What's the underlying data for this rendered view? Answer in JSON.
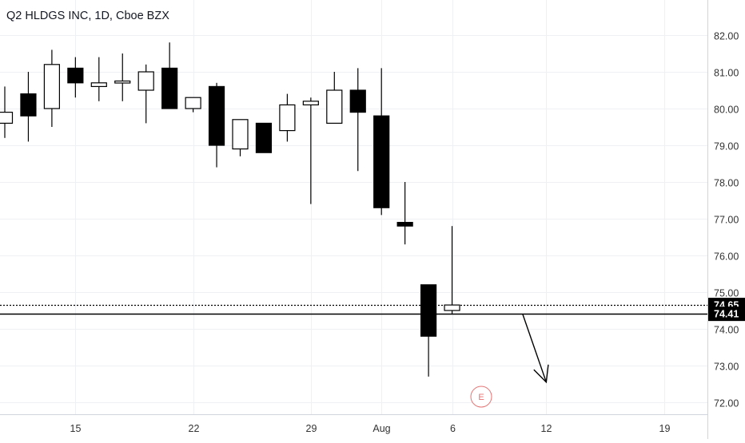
{
  "header": {
    "title": "Q2 HLDGS INC, 1D, Cboe BZX"
  },
  "colors": {
    "background": "#ffffff",
    "grid": "#eef0f3",
    "candle": "#000000",
    "axis_text": "#333333",
    "price_label_bg": "#000000",
    "price_label_text": "#ffffff",
    "earnings_marker": "#e57373"
  },
  "chart_data": {
    "type": "candlestick",
    "title": "Q2 HLDGS INC, 1D, Cboe BZX",
    "ylim": [
      71.85,
      82.7
    ],
    "y_ticks": [
      72,
      73,
      74,
      75,
      76,
      77,
      78,
      79,
      80,
      81,
      82
    ],
    "y_tick_labels": [
      "72.00",
      "73.00",
      "74.00",
      "75.00",
      "76.00",
      "77.00",
      "78.00",
      "79.00",
      "80.00",
      "81.00",
      "82.00"
    ],
    "x_ticks": [
      {
        "label": "15",
        "date": "2019-07-15"
      },
      {
        "label": "22",
        "date": "2019-07-22"
      },
      {
        "label": "29",
        "date": "2019-07-29"
      },
      {
        "label": "Aug",
        "date": "2019-08-01"
      },
      {
        "label": "6",
        "date": "2019-08-06"
      },
      {
        "label": "12",
        "date": "2019-08-12"
      },
      {
        "label": "19",
        "date": "2019-08-19"
      }
    ],
    "candles": [
      {
        "date": "2019-07-10",
        "open": 79.6,
        "high": 80.6,
        "low": 79.2,
        "close": 79.9
      },
      {
        "date": "2019-07-11",
        "open": 80.4,
        "high": 81.0,
        "low": 79.1,
        "close": 79.8
      },
      {
        "date": "2019-07-12",
        "open": 80.0,
        "high": 81.6,
        "low": 79.5,
        "close": 81.2
      },
      {
        "date": "2019-07-15",
        "open": 81.1,
        "high": 81.4,
        "low": 80.3,
        "close": 80.7
      },
      {
        "date": "2019-07-16",
        "open": 80.6,
        "high": 81.4,
        "low": 80.2,
        "close": 80.7
      },
      {
        "date": "2019-07-17",
        "open": 80.75,
        "high": 81.5,
        "low": 80.2,
        "close": 80.75
      },
      {
        "date": "2019-07-18",
        "open": 80.5,
        "high": 81.2,
        "low": 79.6,
        "close": 81.0
      },
      {
        "date": "2019-07-19",
        "open": 81.1,
        "high": 81.8,
        "low": 80.0,
        "close": 80.0
      },
      {
        "date": "2019-07-22",
        "open": 80.0,
        "high": 80.3,
        "low": 79.9,
        "close": 80.3
      },
      {
        "date": "2019-07-23",
        "open": 80.6,
        "high": 80.7,
        "low": 78.4,
        "close": 79.0
      },
      {
        "date": "2019-07-24",
        "open": 78.9,
        "high": 79.7,
        "low": 78.7,
        "close": 79.7
      },
      {
        "date": "2019-07-25",
        "open": 79.6,
        "high": 79.6,
        "low": 78.8,
        "close": 78.8
      },
      {
        "date": "2019-07-26",
        "open": 79.4,
        "high": 80.4,
        "low": 79.1,
        "close": 80.1
      },
      {
        "date": "2019-07-29",
        "open": 80.1,
        "high": 80.3,
        "low": 77.4,
        "close": 80.2
      },
      {
        "date": "2019-07-30",
        "open": 79.6,
        "high": 81.0,
        "low": 79.6,
        "close": 80.5
      },
      {
        "date": "2019-07-31",
        "open": 80.5,
        "high": 81.1,
        "low": 78.3,
        "close": 79.9
      },
      {
        "date": "2019-08-01",
        "open": 79.8,
        "high": 81.1,
        "low": 77.1,
        "close": 77.3
      },
      {
        "date": "2019-08-02",
        "open": 76.9,
        "high": 78.0,
        "low": 76.3,
        "close": 76.8
      },
      {
        "date": "2019-08-05",
        "open": 75.2,
        "high": 75.2,
        "low": 72.7,
        "close": 73.8
      },
      {
        "date": "2019-08-06",
        "open": 74.5,
        "high": 76.8,
        "low": 74.4,
        "close": 74.65
      }
    ],
    "horizontal_lines": [
      {
        "price": 74.65,
        "style": "dotted",
        "label": "74.65"
      },
      {
        "price": 74.41,
        "style": "solid",
        "label": "74.41"
      }
    ],
    "arrow": {
      "from": {
        "date": "2019-08-09",
        "price": 74.4
      },
      "to": {
        "date": "2019-08-12",
        "price": 72.55
      }
    },
    "earnings_marker": {
      "date": "2019-08-07",
      "label": "E"
    }
  }
}
